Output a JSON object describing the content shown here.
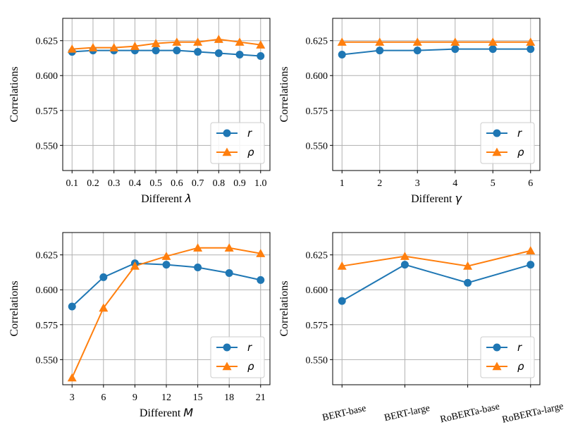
{
  "colors": {
    "r": "#1f77b4",
    "rho": "#ff7f0e",
    "grid": "#b0b0b0"
  },
  "chart_data": [
    {
      "type": "line",
      "categories": [
        "0.1",
        "0.2",
        "0.3",
        "0.4",
        "0.5",
        "0.6",
        "0.7",
        "0.8",
        "0.9",
        "1.0"
      ],
      "series": [
        {
          "name": "r",
          "values": [
            0.617,
            0.618,
            0.618,
            0.618,
            0.618,
            0.618,
            0.617,
            0.616,
            0.615,
            0.614
          ]
        },
        {
          "name": "ρ",
          "values": [
            0.619,
            0.62,
            0.62,
            0.621,
            0.623,
            0.624,
            0.624,
            0.626,
            0.624,
            0.622
          ]
        }
      ],
      "xlabel_prefix": "Different ",
      "xlabel_symbol": "λ",
      "ylabel": "Correlations",
      "ylim": [
        0.532,
        0.641
      ],
      "yticks": [
        "0.550",
        "0.575",
        "0.600",
        "0.625"
      ],
      "grid": true,
      "legend_position": "lower-right",
      "rotate_xticks": false
    },
    {
      "type": "line",
      "categories": [
        "1",
        "2",
        "3",
        "4",
        "5",
        "6"
      ],
      "series": [
        {
          "name": "r",
          "values": [
            0.615,
            0.618,
            0.618,
            0.619,
            0.619,
            0.619
          ]
        },
        {
          "name": "ρ",
          "values": [
            0.624,
            0.624,
            0.624,
            0.624,
            0.624,
            0.624
          ]
        }
      ],
      "xlabel_prefix": "Different ",
      "xlabel_symbol": "γ",
      "ylabel": "Correlations",
      "ylim": [
        0.532,
        0.641
      ],
      "yticks": [
        "0.550",
        "0.575",
        "0.600",
        "0.625"
      ],
      "grid": true,
      "legend_position": "lower-right",
      "rotate_xticks": false
    },
    {
      "type": "line",
      "categories": [
        "3",
        "6",
        "9",
        "12",
        "15",
        "18",
        "21"
      ],
      "series": [
        {
          "name": "r",
          "values": [
            0.588,
            0.609,
            0.619,
            0.618,
            0.616,
            0.612,
            0.607
          ]
        },
        {
          "name": "ρ",
          "values": [
            0.537,
            0.587,
            0.617,
            0.624,
            0.63,
            0.63,
            0.626
          ]
        }
      ],
      "xlabel_prefix": "Different ",
      "xlabel_symbol": "M",
      "ylabel": "Correlations",
      "ylim": [
        0.532,
        0.641
      ],
      "yticks": [
        "0.550",
        "0.575",
        "0.600",
        "0.625"
      ],
      "grid": true,
      "legend_position": "lower-right",
      "rotate_xticks": false
    },
    {
      "type": "line",
      "categories": [
        "BERT-base",
        "BERT-large",
        "RoBERTa-base",
        "RoBERTa-large"
      ],
      "series": [
        {
          "name": "r",
          "values": [
            0.592,
            0.618,
            0.605,
            0.618
          ]
        },
        {
          "name": "ρ",
          "values": [
            0.617,
            0.624,
            0.617,
            0.628
          ]
        }
      ],
      "xlabel_prefix": "",
      "xlabel_symbol": "",
      "ylabel": "Correlations",
      "ylim": [
        0.532,
        0.641
      ],
      "yticks": [
        "0.550",
        "0.575",
        "0.600",
        "0.625"
      ],
      "grid": true,
      "legend_position": "lower-right",
      "rotate_xticks": true
    }
  ]
}
